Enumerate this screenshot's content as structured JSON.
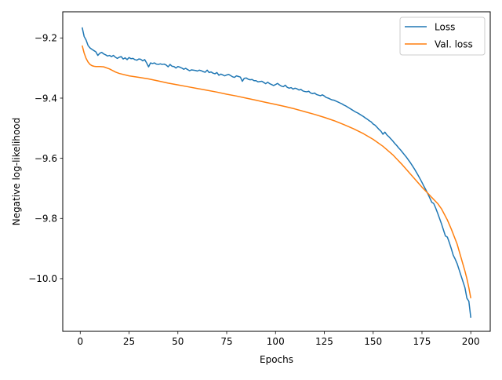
{
  "chart_data": {
    "type": "line",
    "title": "",
    "xlabel": "Epochs",
    "ylabel": "Negative log-likelihood",
    "xlim": [
      -8.95,
      209.95
    ],
    "ylim": [
      -10.175,
      -9.113
    ],
    "x_ticks": [
      0,
      25,
      50,
      75,
      100,
      125,
      150,
      175,
      200
    ],
    "x_tick_labels": [
      "0",
      "25",
      "50",
      "75",
      "100",
      "125",
      "150",
      "175",
      "200"
    ],
    "y_ticks": [
      -10.0,
      -9.8,
      -9.6,
      -9.4,
      -9.2
    ],
    "y_tick_labels": [
      "−10.0",
      "−9.8",
      "−9.6",
      "−9.4",
      "−9.2"
    ],
    "grid": false,
    "legend_position": "top-right",
    "series": [
      {
        "name": "Loss",
        "color": "#1f77b4",
        "x": [
          1,
          2,
          3,
          4,
          5,
          6,
          7,
          8,
          9,
          10,
          11,
          12,
          13,
          14,
          15,
          16,
          17,
          18,
          19,
          20,
          21,
          22,
          23,
          24,
          25,
          26,
          27,
          28,
          29,
          30,
          31,
          32,
          33,
          34,
          35,
          36,
          37,
          38,
          39,
          40,
          41,
          42,
          43,
          44,
          45,
          46,
          47,
          48,
          49,
          50,
          51,
          52,
          53,
          54,
          55,
          56,
          57,
          58,
          59,
          60,
          61,
          62,
          63,
          64,
          65,
          66,
          67,
          68,
          69,
          70,
          71,
          72,
          73,
          74,
          75,
          76,
          77,
          78,
          79,
          80,
          81,
          82,
          83,
          84,
          85,
          86,
          87,
          88,
          89,
          90,
          91,
          92,
          93,
          94,
          95,
          96,
          97,
          98,
          99,
          100,
          101,
          102,
          103,
          104,
          105,
          106,
          107,
          108,
          109,
          110,
          111,
          112,
          113,
          114,
          115,
          116,
          117,
          118,
          119,
          120,
          121,
          122,
          123,
          124,
          125,
          126,
          127,
          128,
          129,
          130,
          131,
          132,
          133,
          134,
          135,
          136,
          137,
          138,
          139,
          140,
          141,
          142,
          143,
          144,
          145,
          146,
          147,
          148,
          149,
          150,
          151,
          152,
          153,
          154,
          155,
          156,
          157,
          158,
          159,
          160,
          161,
          162,
          163,
          164,
          165,
          166,
          167,
          168,
          169,
          170,
          171,
          172,
          173,
          174,
          175,
          176,
          177,
          178,
          179,
          180,
          181,
          182,
          183,
          184,
          185,
          186,
          187,
          188,
          189,
          190,
          191,
          192,
          193,
          194,
          195,
          196,
          197,
          198,
          199,
          200
        ],
        "y": [
          -9.165,
          -9.195,
          -9.207,
          -9.225,
          -9.233,
          -9.238,
          -9.242,
          -9.246,
          -9.258,
          -9.251,
          -9.248,
          -9.253,
          -9.256,
          -9.26,
          -9.258,
          -9.262,
          -9.258,
          -9.264,
          -9.268,
          -9.264,
          -9.262,
          -9.27,
          -9.266,
          -9.272,
          -9.265,
          -9.269,
          -9.268,
          -9.272,
          -9.274,
          -9.27,
          -9.271,
          -9.276,
          -9.272,
          -9.283,
          -9.296,
          -9.283,
          -9.285,
          -9.283,
          -9.287,
          -9.288,
          -9.286,
          -9.288,
          -9.287,
          -9.29,
          -9.296,
          -9.288,
          -9.294,
          -9.295,
          -9.3,
          -9.295,
          -9.297,
          -9.3,
          -9.304,
          -9.301,
          -9.305,
          -9.309,
          -9.306,
          -9.307,
          -9.308,
          -9.31,
          -9.307,
          -9.309,
          -9.312,
          -9.314,
          -9.307,
          -9.315,
          -9.313,
          -9.317,
          -9.319,
          -9.315,
          -9.324,
          -9.32,
          -9.323,
          -9.326,
          -9.323,
          -9.321,
          -9.325,
          -9.329,
          -9.331,
          -9.326,
          -9.328,
          -9.33,
          -9.344,
          -9.334,
          -9.333,
          -9.337,
          -9.339,
          -9.338,
          -9.342,
          -9.342,
          -9.346,
          -9.345,
          -9.344,
          -9.348,
          -9.352,
          -9.347,
          -9.352,
          -9.355,
          -9.358,
          -9.355,
          -9.351,
          -9.356,
          -9.36,
          -9.362,
          -9.357,
          -9.364,
          -9.367,
          -9.365,
          -9.37,
          -9.367,
          -9.369,
          -9.373,
          -9.371,
          -9.376,
          -9.378,
          -9.379,
          -9.377,
          -9.383,
          -9.385,
          -9.383,
          -9.388,
          -9.39,
          -9.392,
          -9.389,
          -9.393,
          -9.398,
          -9.4,
          -9.403,
          -9.406,
          -9.407,
          -9.41,
          -9.413,
          -9.416,
          -9.419,
          -9.423,
          -9.426,
          -9.43,
          -9.434,
          -9.438,
          -9.442,
          -9.446,
          -9.449,
          -9.453,
          -9.457,
          -9.461,
          -9.466,
          -9.47,
          -9.475,
          -9.479,
          -9.486,
          -9.49,
          -9.497,
          -9.504,
          -9.51,
          -9.52,
          -9.513,
          -9.522,
          -9.528,
          -9.535,
          -9.542,
          -9.55,
          -9.557,
          -9.565,
          -9.572,
          -9.58,
          -9.588,
          -9.596,
          -9.605,
          -9.614,
          -9.624,
          -9.634,
          -9.645,
          -9.656,
          -9.668,
          -9.68,
          -9.693,
          -9.705,
          -9.718,
          -9.732,
          -9.746,
          -9.75,
          -9.765,
          -9.782,
          -9.8,
          -9.818,
          -9.838,
          -9.858,
          -9.862,
          -9.88,
          -9.9,
          -9.922,
          -9.935,
          -9.95,
          -9.97,
          -9.99,
          -10.01,
          -10.03,
          -10.065,
          -10.075,
          -10.13
        ]
      },
      {
        "name": "Val. loss",
        "color": "#ff7f0e",
        "x": [
          1,
          2,
          3,
          4,
          5,
          6,
          7,
          8,
          10,
          12,
          15,
          18,
          20,
          25,
          30,
          35,
          40,
          45,
          50,
          55,
          60,
          65,
          70,
          75,
          80,
          85,
          90,
          95,
          100,
          105,
          110,
          115,
          120,
          125,
          130,
          135,
          140,
          145,
          150,
          155,
          160,
          165,
          170,
          175,
          178,
          180,
          183,
          185,
          188,
          190,
          193,
          195,
          197,
          198,
          199,
          200
        ],
        "y": [
          -9.225,
          -9.25,
          -9.268,
          -9.28,
          -9.288,
          -9.292,
          -9.294,
          -9.295,
          -9.295,
          -9.296,
          -9.303,
          -9.313,
          -9.318,
          -9.326,
          -9.331,
          -9.336,
          -9.343,
          -9.35,
          -9.356,
          -9.362,
          -9.368,
          -9.374,
          -9.38,
          -9.387,
          -9.393,
          -9.4,
          -9.407,
          -9.414,
          -9.421,
          -9.428,
          -9.436,
          -9.445,
          -9.454,
          -9.464,
          -9.475,
          -9.488,
          -9.502,
          -9.518,
          -9.537,
          -9.56,
          -9.588,
          -9.622,
          -9.659,
          -9.696,
          -9.716,
          -9.73,
          -9.75,
          -9.768,
          -9.805,
          -9.835,
          -9.885,
          -9.93,
          -9.975,
          -10.0,
          -10.03,
          -10.065
        ]
      }
    ]
  }
}
